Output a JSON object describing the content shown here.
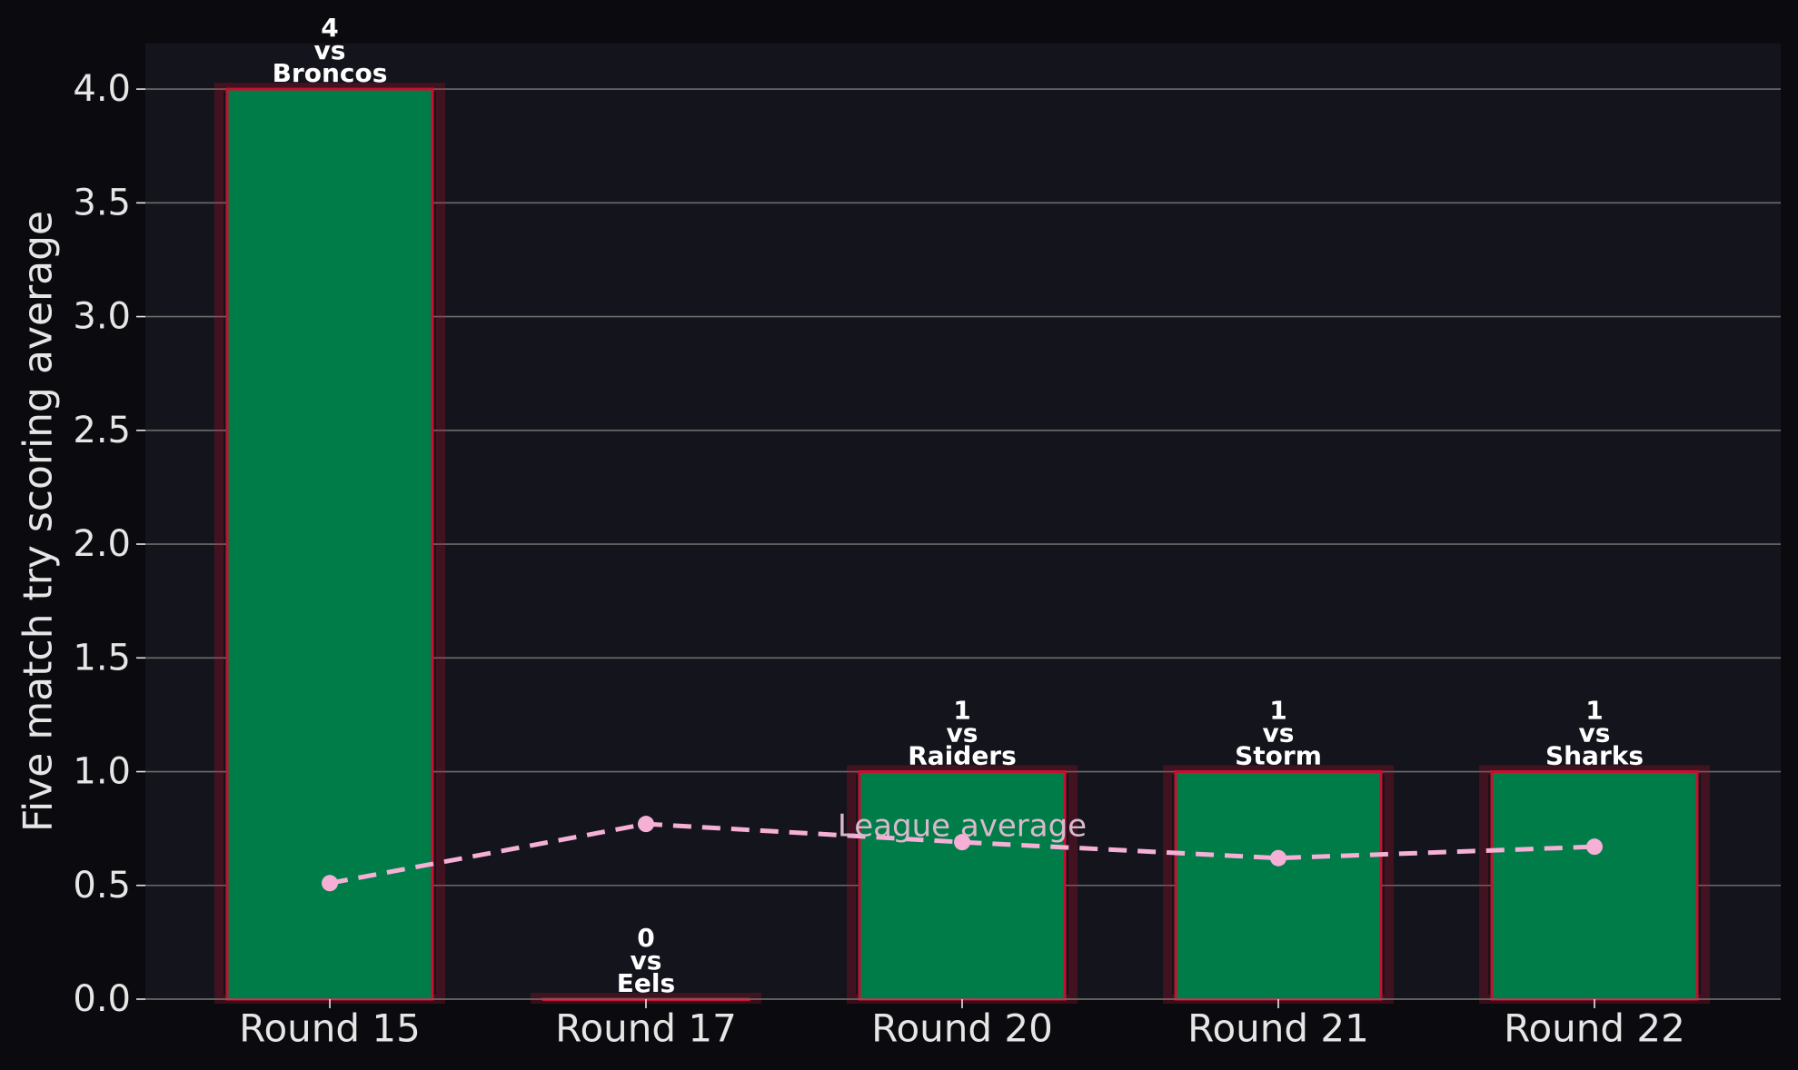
{
  "chart_data": {
    "type": "bar",
    "ylabel": "Five match try scoring average",
    "xlabel": "",
    "title": "",
    "ylim": [
      0,
      4.2
    ],
    "yticks": [
      0.0,
      0.5,
      1.0,
      1.5,
      2.0,
      2.5,
      3.0,
      3.5,
      4.0
    ],
    "ytick_labels": [
      "0.0",
      "0.5",
      "1.0",
      "1.5",
      "2.0",
      "2.5",
      "3.0",
      "3.5",
      "4.0"
    ],
    "grid": "horizontal",
    "categories": [
      "Round 15",
      "Round 17",
      "Round 20",
      "Round 21",
      "Round 22"
    ],
    "series": [
      {
        "kind": "bar",
        "values": [
          4,
          0,
          1,
          1,
          1
        ],
        "labels": [
          [
            "4",
            "vs",
            "Broncos"
          ],
          [
            "0",
            "vs",
            "Eels"
          ],
          [
            "1",
            "vs",
            "Raiders"
          ],
          [
            "1",
            "vs",
            "Storm"
          ],
          [
            "1",
            "vs",
            "Sharks"
          ]
        ]
      },
      {
        "kind": "line",
        "values": [
          0.51,
          0.77,
          0.69,
          0.62,
          0.67
        ]
      }
    ],
    "annotations": [
      {
        "text": "League average",
        "x": "Round 20",
        "y": 0.76
      }
    ],
    "colors": {
      "figure_bg": "#0b0b0f",
      "plot_bg": "#14141c",
      "bar_fill": "#007c49",
      "bar_edge": "#c8102e",
      "line": "#f6b0d6",
      "grid": "#6b6b6b",
      "tick_text": "#e6e6e6",
      "label_text": "#ffffff",
      "annotation_text": "#d8b9cb"
    }
  }
}
